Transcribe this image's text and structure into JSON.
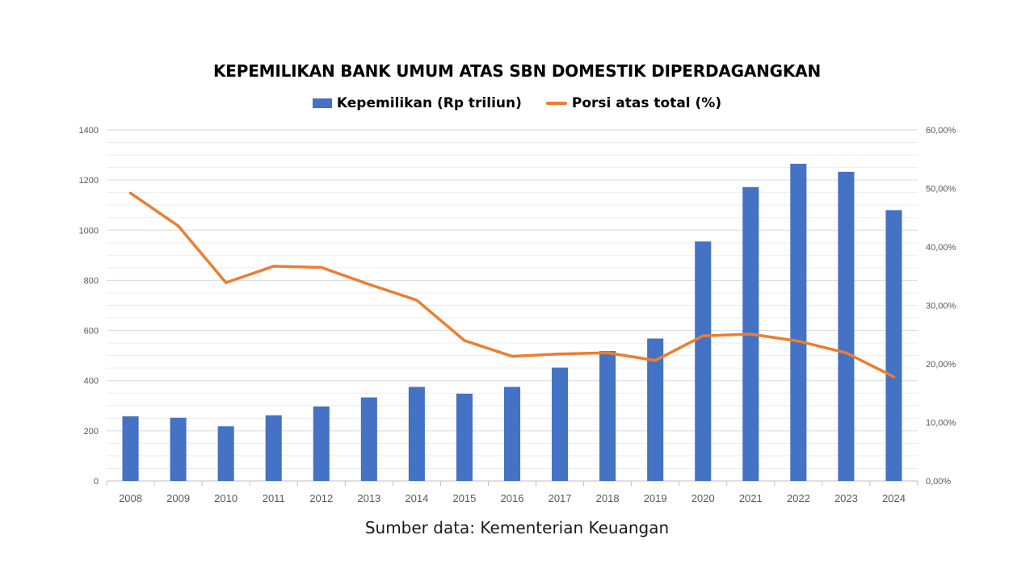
{
  "chart_data": {
    "type": "bar",
    "title": "KEPEMILIKAN BANK UMUM ATAS SBN DOMESTIK DIPERDAGANGKAN",
    "categories": [
      "2008",
      "2009",
      "2010",
      "2011",
      "2012",
      "2013",
      "2014",
      "2015",
      "2016",
      "2017",
      "2018",
      "2019",
      "2020",
      "2021",
      "2022",
      "2023",
      "2024"
    ],
    "series": [
      {
        "name": "Kepemilikan (Rp triliun)",
        "type": "bar",
        "axis": "left",
        "color": "#4472C4",
        "values": [
          258,
          252,
          218,
          262,
          297,
          333,
          375,
          348,
          375,
          452,
          518,
          568,
          955,
          1172,
          1265,
          1233,
          1080
        ]
      },
      {
        "name": "Porsi atas total (%)",
        "type": "line",
        "axis": "right",
        "color": "#ED7D31",
        "values": [
          49.2,
          43.6,
          33.9,
          36.7,
          36.5,
          33.6,
          30.9,
          24.0,
          21.3,
          21.7,
          21.9,
          20.6,
          24.8,
          25.1,
          23.9,
          21.9,
          17.8
        ]
      }
    ],
    "left_axis": {
      "ylim": [
        0,
        1400
      ],
      "ticks": [
        0,
        200,
        400,
        600,
        800,
        1000,
        1200,
        1400
      ],
      "tick_labels": [
        "0",
        "200",
        "400",
        "600",
        "800",
        "1000",
        "1200",
        "1400"
      ]
    },
    "right_axis": {
      "ylim": [
        0,
        60
      ],
      "ticks": [
        0,
        10,
        20,
        30,
        40,
        50,
        60
      ],
      "tick_labels": [
        "0,00%",
        "10,00%",
        "20,00%",
        "30,00%",
        "40,00%",
        "50,00%",
        "60,00%"
      ]
    },
    "xlabel": "",
    "ylabel": "",
    "grid": true,
    "legend": "top-center"
  },
  "footer": {
    "source": "Sumber data: Kementerian Keuangan"
  }
}
